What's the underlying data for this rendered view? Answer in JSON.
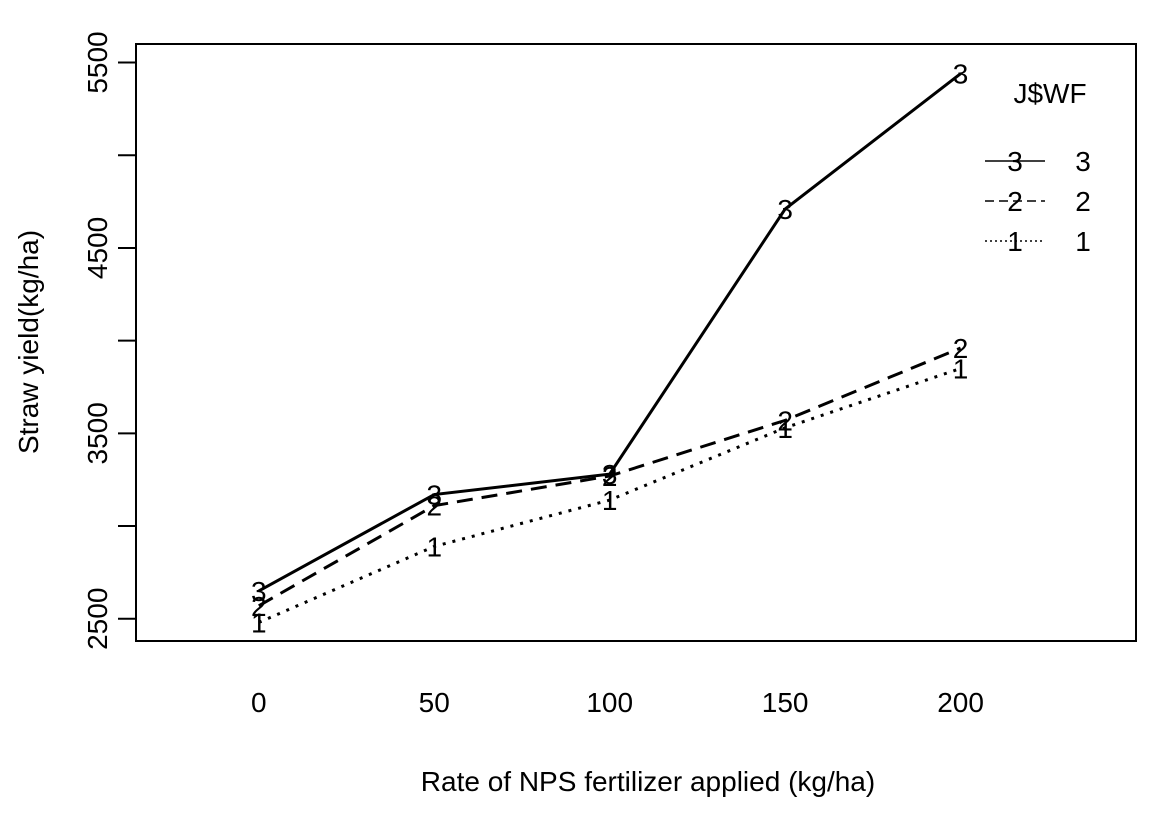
{
  "chart_data": {
    "type": "line",
    "x": [
      0,
      50,
      100,
      150,
      200
    ],
    "xticks": [
      "0",
      "50",
      "100",
      "150",
      "200"
    ],
    "yticks": [
      "2500",
      "3500",
      "4500",
      "5500"
    ],
    "xlabel": "Rate of NPS fertilizer applied (kg/ha)",
    "ylabel": "Straw yield(kg/ha)",
    "xlim": [
      -35,
      250
    ],
    "ylim": [
      2380,
      5600
    ],
    "grid": false,
    "legend_position": "top-right",
    "legend_title": "J$WF",
    "series": [
      {
        "name": "3",
        "symbol": "3",
        "dash": "solid",
        "values": [
          2650,
          3170,
          3280,
          4710,
          5440
        ]
      },
      {
        "name": "2",
        "symbol": "2",
        "dash": "dashed",
        "values": [
          2570,
          3110,
          3270,
          3570,
          3960
        ]
      },
      {
        "name": "1",
        "symbol": "1",
        "dash": "dotted",
        "values": [
          2480,
          2890,
          3140,
          3530,
          3850
        ]
      }
    ]
  }
}
